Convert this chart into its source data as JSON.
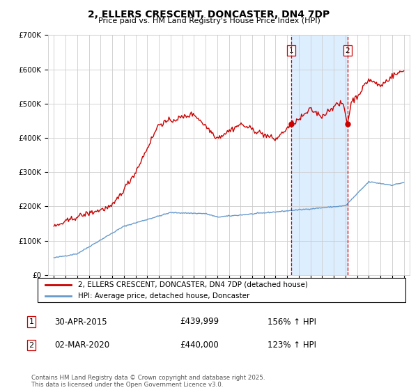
{
  "title": "2, ELLERS CRESCENT, DONCASTER, DN4 7DP",
  "subtitle": "Price paid vs. HM Land Registry's House Price Index (HPI)",
  "ylim": [
    0,
    700000
  ],
  "yticks": [
    0,
    100000,
    200000,
    300000,
    400000,
    500000,
    600000,
    700000
  ],
  "ytick_labels": [
    "£0",
    "£100K",
    "£200K",
    "£300K",
    "£400K",
    "£500K",
    "£600K",
    "£700K"
  ],
  "xlim_start": 1994.5,
  "xlim_end": 2025.5,
  "sale1_date": 2015.33,
  "sale1_price": 439999,
  "sale1_label": "30-APR-2015",
  "sale1_value_label": "£439,999",
  "sale1_hpi_label": "156% ↑ HPI",
  "sale2_date": 2020.17,
  "sale2_price": 440000,
  "sale2_label": "02-MAR-2020",
  "sale2_value_label": "£440,000",
  "sale2_hpi_label": "123% ↑ HPI",
  "red_line_color": "#cc0000",
  "blue_line_color": "#6699cc",
  "shade_color": "#ddeeff",
  "grid_color": "#cccccc",
  "legend1_text": "2, ELLERS CRESCENT, DONCASTER, DN4 7DP (detached house)",
  "legend2_text": "HPI: Average price, detached house, Doncaster",
  "footer_text": "Contains HM Land Registry data © Crown copyright and database right 2025.\nThis data is licensed under the Open Government Licence v3.0."
}
